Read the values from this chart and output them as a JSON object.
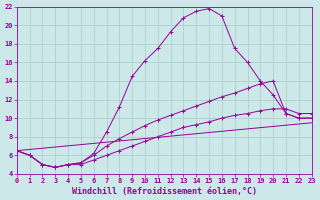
{
  "xlabel": "Windchill (Refroidissement éolien,°C)",
  "bg_color": "#cce8e8",
  "line_color": "#990099",
  "grid_color": "#aacccc",
  "lines": [
    {
      "x": [
        0,
        1,
        2,
        3,
        4,
        5,
        6,
        7,
        8,
        9,
        10,
        11,
        12,
        13,
        14,
        15,
        16,
        17,
        18,
        19,
        20,
        21,
        22,
        23
      ],
      "y": [
        6.5,
        6.0,
        5.0,
        4.7,
        5.0,
        5.2,
        6.2,
        8.5,
        11.2,
        14.5,
        16.2,
        17.5,
        19.3,
        20.8,
        21.5,
        21.8,
        21.0,
        17.5,
        16.0,
        14.0,
        12.5,
        10.5,
        10.0,
        10.0
      ],
      "marker": true
    },
    {
      "x": [
        0,
        1,
        2,
        3,
        4,
        5,
        6,
        7,
        8,
        9,
        10,
        11,
        12,
        13,
        14,
        15,
        16,
        17,
        18,
        19,
        20,
        21,
        22,
        23
      ],
      "y": [
        6.5,
        6.0,
        5.0,
        4.7,
        5.0,
        5.2,
        6.0,
        7.0,
        7.8,
        8.5,
        9.2,
        9.8,
        10.3,
        10.8,
        11.3,
        11.8,
        12.3,
        12.7,
        13.2,
        13.7,
        14.0,
        10.5,
        10.0,
        10.0
      ],
      "marker": true
    },
    {
      "x": [
        0,
        1,
        2,
        3,
        4,
        5,
        6,
        7,
        8,
        9,
        10,
        11,
        12,
        13,
        14,
        15,
        16,
        17,
        18,
        19,
        20,
        21,
        22,
        23
      ],
      "y": [
        6.5,
        6.0,
        5.0,
        4.7,
        5.0,
        5.0,
        5.5,
        6.0,
        6.5,
        7.0,
        7.5,
        8.0,
        8.5,
        9.0,
        9.3,
        9.6,
        10.0,
        10.3,
        10.5,
        10.8,
        11.0,
        11.0,
        10.5,
        10.5
      ],
      "marker": true
    },
    {
      "x": [
        0,
        23
      ],
      "y": [
        6.5,
        9.5
      ],
      "marker": false
    }
  ],
  "xlim": [
    0,
    23
  ],
  "ylim": [
    4,
    22
  ],
  "yticks": [
    4,
    6,
    8,
    10,
    12,
    14,
    16,
    18,
    20,
    22
  ],
  "xticks": [
    0,
    1,
    2,
    3,
    4,
    5,
    6,
    7,
    8,
    9,
    10,
    11,
    12,
    13,
    14,
    15,
    16,
    17,
    18,
    19,
    20,
    21,
    22,
    23
  ],
  "tick_fontsize": 5.0,
  "xlabel_fontsize": 6.0,
  "figsize": [
    3.2,
    2.0
  ],
  "dpi": 100
}
